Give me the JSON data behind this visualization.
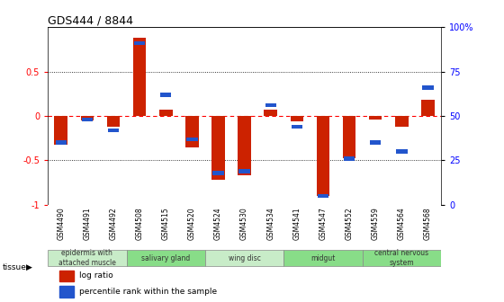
{
  "title": "GDS444 / 8844",
  "samples": [
    "GSM4490",
    "GSM4491",
    "GSM4492",
    "GSM4508",
    "GSM4515",
    "GSM4520",
    "GSM4524",
    "GSM4530",
    "GSM4534",
    "GSM4541",
    "GSM4547",
    "GSM4552",
    "GSM4559",
    "GSM4564",
    "GSM4568"
  ],
  "log_ratio": [
    -0.32,
    -0.05,
    -0.12,
    0.88,
    0.07,
    -0.35,
    -0.72,
    -0.67,
    0.07,
    -0.06,
    -0.9,
    -0.47,
    -0.04,
    -0.12,
    0.18
  ],
  "percentile": [
    35,
    48,
    42,
    91,
    62,
    37,
    18,
    19,
    56,
    44,
    5,
    26,
    35,
    30,
    66
  ],
  "tissues": [
    {
      "label": "epidermis with\nattached muscle",
      "start": 0,
      "end": 3,
      "color": "#c8ecc8"
    },
    {
      "label": "salivary gland",
      "start": 3,
      "end": 6,
      "color": "#88dd88"
    },
    {
      "label": "wing disc",
      "start": 6,
      "end": 9,
      "color": "#c8ecc8"
    },
    {
      "label": "midgut",
      "start": 9,
      "end": 12,
      "color": "#88dd88"
    },
    {
      "label": "central nervous\nsystem",
      "start": 12,
      "end": 15,
      "color": "#88dd88"
    }
  ],
  "bar_color_red": "#cc2200",
  "bar_color_blue": "#2255cc",
  "ylim": [
    -1.0,
    1.0
  ],
  "yticks_left": [
    -1,
    -0.5,
    0,
    0.5
  ],
  "yticks_right_vals": [
    0,
    25,
    50,
    75,
    100
  ],
  "yticks_right_labels": [
    "0",
    "25",
    "50",
    "75",
    "100%"
  ],
  "dotted_lines": [
    -0.5,
    0.0,
    0.5
  ],
  "dotted_styles": [
    "dotted",
    "dashed_red",
    "dotted"
  ],
  "legend_log": "log ratio",
  "legend_pct": "percentile rank within the sample",
  "tissue_arrow_label": "tissue",
  "fig_width": 5.6,
  "fig_height": 3.36,
  "dpi": 100
}
